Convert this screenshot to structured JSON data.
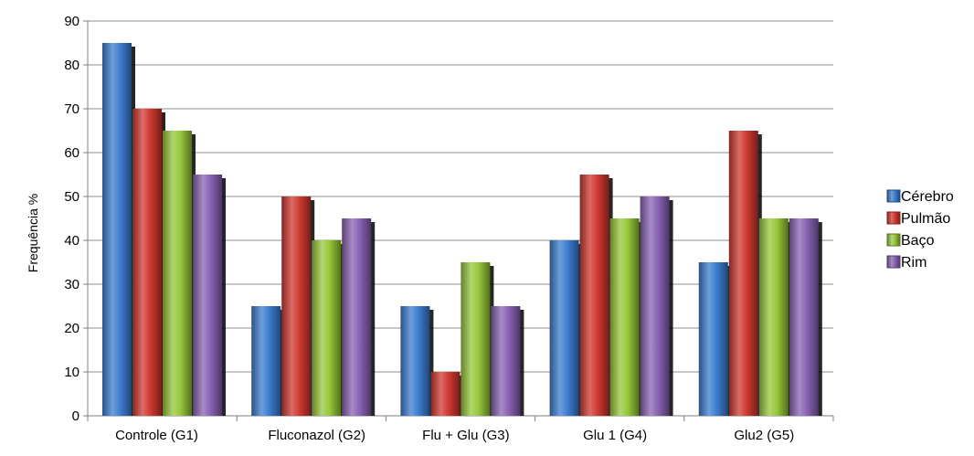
{
  "chart_data": {
    "type": "bar",
    "title": "",
    "xlabel": "",
    "ylabel": "Frequência %",
    "ylim": [
      0,
      90
    ],
    "ytick_step": 10,
    "grid": true,
    "legend_position": "right",
    "categories": [
      "Controle (G1)",
      "Fluconazol (G2)",
      "Flu + Glu (G3)",
      "Glu 1 (G4)",
      "Glu2 (G5)"
    ],
    "series": [
      {
        "name": "Cérebro",
        "color": "#3d7fd2",
        "values": [
          85,
          25,
          25,
          40,
          35
        ]
      },
      {
        "name": "Pulmão",
        "color": "#d13a32",
        "values": [
          70,
          50,
          10,
          55,
          65
        ]
      },
      {
        "name": "Baço",
        "color": "#98c83c",
        "values": [
          65,
          40,
          35,
          45,
          45
        ]
      },
      {
        "name": "Rim",
        "color": "#8a64b4",
        "values": [
          55,
          45,
          25,
          50,
          45
        ]
      }
    ]
  }
}
